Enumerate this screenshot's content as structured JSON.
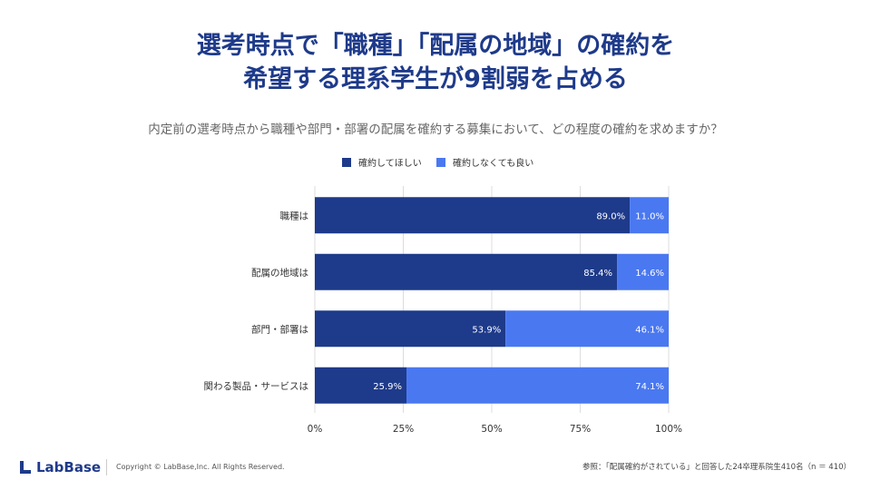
{
  "title": {
    "line1": "選考時点で「職種」「配属の地域」の確約を",
    "line2": "希望する理系学生が9割弱を占める"
  },
  "subtitle": "内定前の選考時点から職種や部門・部署の配属を確約する募集において、どの程度の確約を求めますか？",
  "colors": {
    "series1": "#1e3a8a",
    "series2": "#4a78f0",
    "grid": "#dddddd",
    "axis_text": "#333333",
    "bar_label": "#ffffff",
    "title": "#1e3a8a"
  },
  "chart_data": {
    "type": "bar",
    "orientation": "horizontal",
    "stacked": true,
    "categories": [
      "職種は",
      "配属の地域は",
      "部門・部署は",
      "関わる製品・サービスは"
    ],
    "series": [
      {
        "name": "確約してほしい",
        "values": [
          89.0,
          85.4,
          53.9,
          25.9
        ],
        "labels": [
          "89.0%",
          "85.4%",
          "53.9%",
          "25.9%"
        ]
      },
      {
        "name": "確約しなくても良い",
        "values": [
          11.0,
          14.6,
          46.1,
          74.1
        ],
        "labels": [
          "11.0%",
          "14.6%",
          "46.1%",
          "74.1%"
        ]
      }
    ],
    "xlim": [
      0,
      100
    ],
    "x_ticks": [
      0,
      25,
      50,
      75,
      100
    ],
    "x_tick_labels": [
      "0%",
      "25%",
      "50%",
      "75%",
      "100%"
    ],
    "grid": true,
    "legend_position": "top-center"
  },
  "footer": {
    "logo": "LabBase",
    "copyright": "Copyright ©  LabBase,Inc. All Rights Reserved.",
    "source": "参照：「配属確約がされている」と回答した24卒理系院生410名（n ＝ 410）"
  }
}
